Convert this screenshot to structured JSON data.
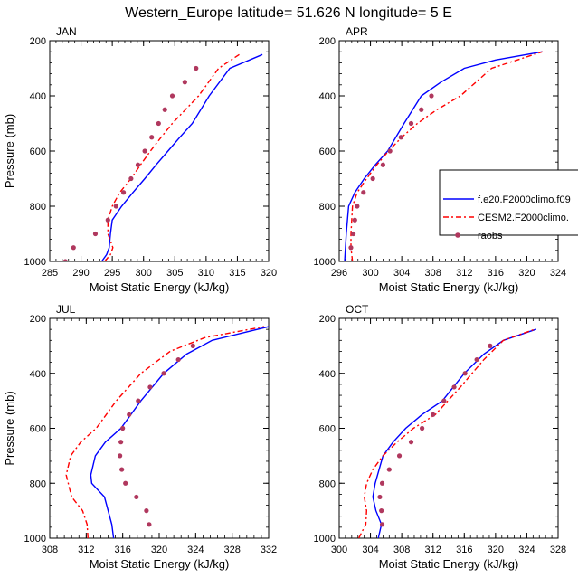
{
  "figure": {
    "title": "Western_Europe  latitude= 51.626 N longitude= 5 E",
    "ylabel": "Pressure (mb)",
    "xlabel": "Moist Static Energy (kJ/kg)"
  },
  "legend": {
    "location": "right of APR panel",
    "entries": [
      {
        "label": "f.e20.F2000climo.f09",
        "style": "solid",
        "color": "#0000ff"
      },
      {
        "label": "CESM2.F2000climo.",
        "style": "dashed",
        "color": "#ff0000"
      },
      {
        "label": "raobs",
        "style": "dots",
        "color": "#b0385e"
      }
    ]
  },
  "chart_data": [
    {
      "type": "line",
      "panel": "JAN",
      "xlabel": "Moist Static Energy (kJ/kg)",
      "ylabel": "Pressure (mb)",
      "xlim": [
        285,
        320
      ],
      "ylim": [
        200,
        1000
      ],
      "y_inverted": true,
      "xticks": [
        285,
        290,
        295,
        300,
        305,
        310,
        315,
        320
      ],
      "yticks": [
        200,
        400,
        600,
        800,
        1000
      ],
      "series": [
        {
          "name": "f.e20.F2000climo.f09",
          "color": "#0000ff",
          "style": "solid",
          "x": [
            293.3,
            294.1,
            294.5,
            294.7,
            295.0,
            296.5,
            298.3,
            300.2,
            302.0,
            303.9,
            305.8,
            307.8,
            310.5,
            313.8,
            319.0
          ],
          "y": [
            1000,
            975,
            950,
            900,
            850,
            800,
            750,
            700,
            650,
            600,
            550,
            500,
            400,
            300,
            250
          ]
        },
        {
          "name": "CESM2.F2000climo.",
          "color": "#ff0000",
          "style": "dashed",
          "x": [
            293.8,
            294.7,
            295.1,
            294.3,
            294.3,
            295.0,
            296.2,
            298.0,
            299.5,
            301.1,
            302.8,
            304.6,
            306.7,
            308.8,
            312.0,
            315.3
          ],
          "y": [
            1000,
            975,
            950,
            900,
            850,
            800,
            750,
            700,
            650,
            600,
            550,
            500,
            450,
            400,
            300,
            250
          ]
        },
        {
          "name": "raobs",
          "color": "#b0385e",
          "style": "dots",
          "x": [
            287.5,
            288.8,
            292.3,
            294.3,
            295.6,
            296.8,
            298.0,
            299.1,
            300.2,
            301.3,
            302.4,
            303.4,
            304.6,
            306.6,
            308.4
          ],
          "y": [
            1000,
            950,
            900,
            850,
            800,
            750,
            700,
            650,
            600,
            550,
            500,
            450,
            400,
            350,
            300
          ]
        }
      ]
    },
    {
      "type": "line",
      "panel": "APR",
      "xlabel": "Moist Static Energy (kJ/kg)",
      "ylabel": "Pressure (mb)",
      "xlim": [
        296,
        324
      ],
      "ylim": [
        200,
        1000
      ],
      "y_inverted": true,
      "xticks": [
        296,
        300,
        304,
        308,
        312,
        316,
        320,
        324
      ],
      "yticks": [
        200,
        400,
        600,
        800,
        1000
      ],
      "series": [
        {
          "name": "f.e20.F2000climo.f09",
          "color": "#0000ff",
          "style": "solid",
          "x": [
            296.7,
            296.8,
            296.9,
            297.2,
            298.0,
            299.2,
            300.6,
            302.2,
            304.3,
            306.5,
            309.0,
            312.0,
            316.0,
            322.0
          ],
          "y": [
            1000,
            950,
            900,
            800,
            750,
            700,
            650,
            600,
            500,
            400,
            350,
            300,
            270,
            240
          ]
        },
        {
          "name": "CESM2.F2000climo.",
          "color": "#ff0000",
          "style": "dashed",
          "x": [
            297.7,
            297.5,
            297.5,
            297.7,
            298.3,
            299.5,
            300.8,
            302.3,
            304.0,
            306.0,
            308.5,
            311.5,
            315.5,
            322.0
          ],
          "y": [
            1000,
            950,
            900,
            800,
            750,
            700,
            650,
            600,
            550,
            500,
            450,
            400,
            300,
            240
          ]
        },
        {
          "name": "raobs",
          "color": "#b0385e",
          "style": "dots",
          "x": [
            297.5,
            297.8,
            298.0,
            298.3,
            299.1,
            300.3,
            301.6,
            302.5,
            303.9,
            305.2,
            306.5,
            307.8
          ],
          "y": [
            950,
            900,
            850,
            800,
            750,
            700,
            650,
            600,
            550,
            500,
            450,
            400
          ]
        }
      ]
    },
    {
      "type": "line",
      "panel": "JUL",
      "xlabel": "Moist Static Energy (kJ/kg)",
      "ylabel": "Pressure (mb)",
      "xlim": [
        308,
        332
      ],
      "ylim": [
        200,
        1000
      ],
      "y_inverted": true,
      "xticks": [
        308,
        312,
        316,
        320,
        324,
        328,
        332
      ],
      "yticks": [
        200,
        400,
        600,
        800,
        1000
      ],
      "series": [
        {
          "name": "f.e20.F2000climo.f09",
          "color": "#0000ff",
          "style": "solid",
          "x": [
            315.0,
            314.8,
            314.0,
            312.6,
            312.5,
            313.0,
            314.1,
            315.8,
            318.0,
            320.5,
            323.0,
            325.8,
            332.0
          ],
          "y": [
            1000,
            950,
            850,
            800,
            770,
            700,
            650,
            600,
            500,
            400,
            330,
            280,
            230
          ]
        },
        {
          "name": "CESM2.F2000climo.",
          "color": "#ff0000",
          "style": "dashed",
          "x": [
            312.2,
            312.1,
            311.6,
            310.4,
            309.8,
            310.3,
            311.4,
            313.1,
            315.3,
            318.0,
            321.2,
            325.0,
            331.5
          ],
          "y": [
            1000,
            950,
            900,
            850,
            770,
            700,
            650,
            600,
            500,
            400,
            320,
            270,
            230
          ]
        },
        {
          "name": "raobs",
          "color": "#b0385e",
          "style": "dots",
          "x": [
            318.9,
            318.6,
            317.5,
            316.3,
            315.9,
            315.7,
            315.8,
            316.0,
            316.7,
            317.7,
            319.0,
            320.5,
            322.1,
            323.7
          ],
          "y": [
            950,
            900,
            850,
            800,
            750,
            700,
            650,
            600,
            550,
            500,
            450,
            400,
            350,
            300
          ]
        }
      ]
    },
    {
      "type": "line",
      "panel": "OCT",
      "xlabel": "Moist Static Energy (kJ/kg)",
      "ylabel": "Pressure (mb)",
      "xlim": [
        300,
        328
      ],
      "ylim": [
        200,
        1000
      ],
      "y_inverted": true,
      "xticks": [
        300,
        304,
        308,
        312,
        316,
        320,
        324,
        328
      ],
      "yticks": [
        200,
        400,
        600,
        800,
        1000
      ],
      "series": [
        {
          "name": "f.e20.F2000climo.f09",
          "color": "#0000ff",
          "style": "solid",
          "x": [
            305.0,
            305.4,
            304.7,
            304.3,
            304.6,
            305.6,
            306.9,
            308.5,
            310.6,
            313.2,
            316.0,
            318.5,
            321.0,
            325.2
          ],
          "y": [
            1000,
            950,
            900,
            850,
            800,
            700,
            650,
            600,
            550,
            500,
            400,
            330,
            280,
            240
          ]
        },
        {
          "name": "CESM2.F2000climo.",
          "color": "#ff0000",
          "style": "dashed",
          "x": [
            302.5,
            303.4,
            303.5,
            303.2,
            303.5,
            304.3,
            305.6,
            307.4,
            309.5,
            312.3,
            315.5,
            318.5,
            321.0,
            325.0
          ],
          "y": [
            1000,
            950,
            900,
            850,
            800,
            750,
            700,
            650,
            600,
            550,
            450,
            350,
            280,
            240
          ]
        },
        {
          "name": "raobs",
          "color": "#b0385e",
          "style": "dots",
          "x": [
            305.5,
            305.4,
            305.2,
            305.5,
            306.4,
            307.7,
            309.2,
            310.6,
            312.0,
            313.4,
            314.7,
            316.1,
            317.6,
            319.3
          ],
          "y": [
            950,
            900,
            850,
            800,
            750,
            700,
            650,
            600,
            550,
            500,
            450,
            400,
            350,
            300
          ]
        }
      ]
    }
  ]
}
